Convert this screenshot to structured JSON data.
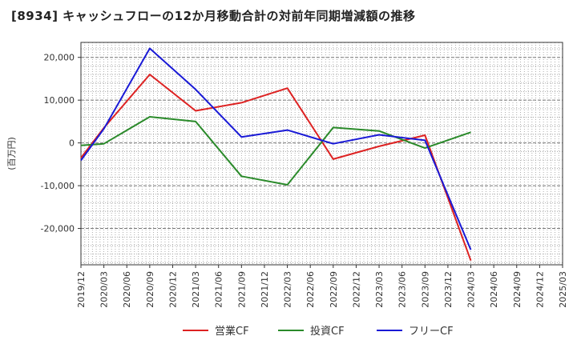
{
  "title": "[8934]  キャッシュフローの12か月移動合計の対前年同期増減額の推移",
  "chart_data": {
    "type": "line",
    "ylabel": "(百万円)",
    "x": [
      "2019/12",
      "2020/03",
      "2020/06",
      "2020/09",
      "2020/12",
      "2021/03",
      "2021/06",
      "2021/09",
      "2021/12",
      "2022/03",
      "2022/06",
      "2022/09",
      "2022/12",
      "2023/03",
      "2023/06",
      "2023/09",
      "2023/12",
      "2024/03",
      "2024/06",
      "2024/09",
      "2024/12",
      "2025/03"
    ],
    "ylim": [
      -28500,
      23500
    ],
    "yticks": [
      20000,
      10000,
      0,
      -10000,
      -20000
    ],
    "ytick_labels": [
      "20,000",
      "10,000",
      "0",
      "-10,000",
      "-20,000"
    ],
    "grid": true,
    "legend_position": "bottom",
    "series": [
      {
        "name": "営業CF",
        "color": "#dd2222",
        "values": [
          -3500,
          3500,
          null,
          16000,
          null,
          7500,
          null,
          9400,
          null,
          12800,
          null,
          -3800,
          null,
          -800,
          null,
          1800,
          null,
          -27500,
          null,
          null,
          null,
          null
        ]
      },
      {
        "name": "投資CF",
        "color": "#2a8a2a",
        "values": [
          -600,
          -200,
          null,
          6100,
          null,
          5000,
          null,
          -7800,
          null,
          -9800,
          null,
          3600,
          null,
          2800,
          null,
          -1200,
          null,
          2500,
          null,
          null,
          null,
          null
        ]
      },
      {
        "name": "フリーCF",
        "color": "#1a1ad6",
        "values": [
          -4100,
          3300,
          null,
          22100,
          null,
          12500,
          null,
          1400,
          null,
          3000,
          null,
          -200,
          null,
          1900,
          null,
          600,
          null,
          -25000,
          null,
          null,
          null,
          null
        ]
      }
    ]
  }
}
